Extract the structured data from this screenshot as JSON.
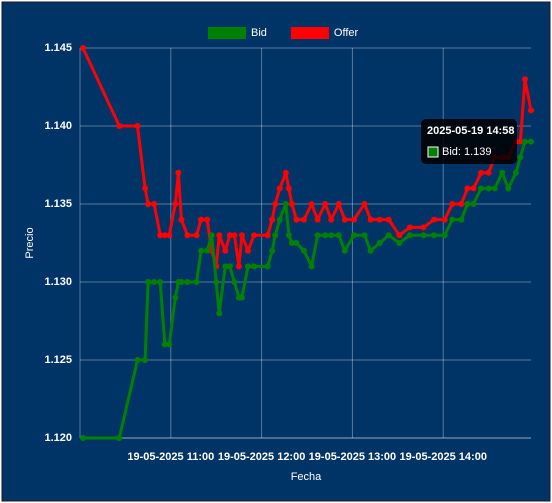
{
  "chart_data": {
    "type": "line",
    "x_label": "Fecha",
    "y_label": "Precio",
    "x": [
      "2025-05-19 10:02",
      "2025-05-19 10:26",
      "2025-05-19 10:38",
      "2025-05-19 10:43",
      "2025-05-19 10:45",
      "2025-05-19 10:49",
      "2025-05-19 10:53",
      "2025-05-19 10:56",
      "2025-05-19 10:59",
      "2025-05-19 11:03",
      "2025-05-19 11:05",
      "2025-05-19 11:07",
      "2025-05-19 11:11",
      "2025-05-19 11:17",
      "2025-05-19 11:20",
      "2025-05-19 11:24",
      "2025-05-19 11:27",
      "2025-05-19 11:30",
      "2025-05-19 11:32",
      "2025-05-19 11:36",
      "2025-05-19 11:39",
      "2025-05-19 11:42",
      "2025-05-19 11:45",
      "2025-05-19 11:47",
      "2025-05-19 11:51",
      "2025-05-19 11:55",
      "2025-05-19 12:04",
      "2025-05-19 12:07",
      "2025-05-19 12:09",
      "2025-05-19 12:12",
      "2025-05-19 12:16",
      "2025-05-19 12:18",
      "2025-05-19 12:20",
      "2025-05-19 12:23",
      "2025-05-19 12:28",
      "2025-05-19 12:33",
      "2025-05-19 12:37",
      "2025-05-19 12:42",
      "2025-05-19 12:46",
      "2025-05-19 12:51",
      "2025-05-19 12:55",
      "2025-05-19 13:01",
      "2025-05-19 13:08",
      "2025-05-19 13:12",
      "2025-05-19 13:18",
      "2025-05-19 13:24",
      "2025-05-19 13:31",
      "2025-05-19 13:38",
      "2025-05-19 13:47",
      "2025-05-19 13:54",
      "2025-05-19 14:01",
      "2025-05-19 14:06",
      "2025-05-19 14:12",
      "2025-05-19 14:16",
      "2025-05-19 14:20",
      "2025-05-19 14:25",
      "2025-05-19 14:30",
      "2025-05-19 14:34",
      "2025-05-19 14:39",
      "2025-05-19 14:43",
      "2025-05-19 14:48",
      "2025-05-19 14:51",
      "2025-05-19 14:54",
      "2025-05-19 14:58"
    ],
    "series": [
      {
        "name": "Bid",
        "color": "#008000",
        "values": [
          1.12,
          1.12,
          1.125,
          1.125,
          1.13,
          1.13,
          1.13,
          1.126,
          1.126,
          1.129,
          1.13,
          1.13,
          1.13,
          1.13,
          1.132,
          1.132,
          1.133,
          1.13,
          1.128,
          1.131,
          1.131,
          1.13,
          1.129,
          1.129,
          1.131,
          1.131,
          1.131,
          1.132,
          1.133,
          1.134,
          1.135,
          1.133,
          1.1325,
          1.1325,
          1.132,
          1.131,
          1.133,
          1.133,
          1.133,
          1.133,
          1.132,
          1.133,
          1.133,
          1.132,
          1.1325,
          1.133,
          1.1325,
          1.133,
          1.133,
          1.133,
          1.133,
          1.134,
          1.134,
          1.135,
          1.135,
          1.136,
          1.136,
          1.136,
          1.137,
          1.136,
          1.137,
          1.138,
          1.139,
          1.139
        ]
      },
      {
        "name": "Offer",
        "color": "#ff0000",
        "values": [
          1.145,
          1.14,
          1.14,
          1.136,
          1.135,
          1.135,
          1.133,
          1.133,
          1.133,
          1.135,
          1.137,
          1.134,
          1.133,
          1.133,
          1.134,
          1.134,
          1.132,
          1.131,
          1.133,
          1.132,
          1.133,
          1.133,
          1.131,
          1.133,
          1.132,
          1.133,
          1.133,
          1.134,
          1.135,
          1.136,
          1.137,
          1.136,
          1.135,
          1.134,
          1.134,
          1.135,
          1.134,
          1.135,
          1.134,
          1.135,
          1.134,
          1.134,
          1.135,
          1.134,
          1.134,
          1.134,
          1.133,
          1.1335,
          1.1335,
          1.134,
          1.134,
          1.135,
          1.135,
          1.136,
          1.136,
          1.137,
          1.137,
          1.138,
          1.138,
          1.138,
          1.139,
          1.139,
          1.143,
          1.141
        ]
      }
    ],
    "xlim": [
      "2025-05-19 10:00",
      "2025-05-19 14:58"
    ],
    "xticks": [
      {
        "value": "2025-05-19 11:00",
        "label": "19-05-2025 11:00"
      },
      {
        "value": "2025-05-19 12:00",
        "label": "19-05-2025 12:00"
      },
      {
        "value": "2025-05-19 13:00",
        "label": "19-05-2025 13:00"
      },
      {
        "value": "2025-05-19 14:00",
        "label": "19-05-2025 14:00"
      }
    ],
    "ylim": [
      1.12,
      1.145
    ],
    "yticks": [
      {
        "value": 1.12,
        "label": "1.120"
      },
      {
        "value": 1.125,
        "label": "1.125"
      },
      {
        "value": 1.13,
        "label": "1.130"
      },
      {
        "value": 1.135,
        "label": "1.135"
      },
      {
        "value": 1.14,
        "label": "1.140"
      },
      {
        "value": 1.145,
        "label": "1.145"
      }
    ],
    "grid": true,
    "legend": "top",
    "tooltip": {
      "title": "2025-05-19 14:58",
      "label": "Bid: 1.139",
      "series": 0,
      "index": 63
    }
  }
}
